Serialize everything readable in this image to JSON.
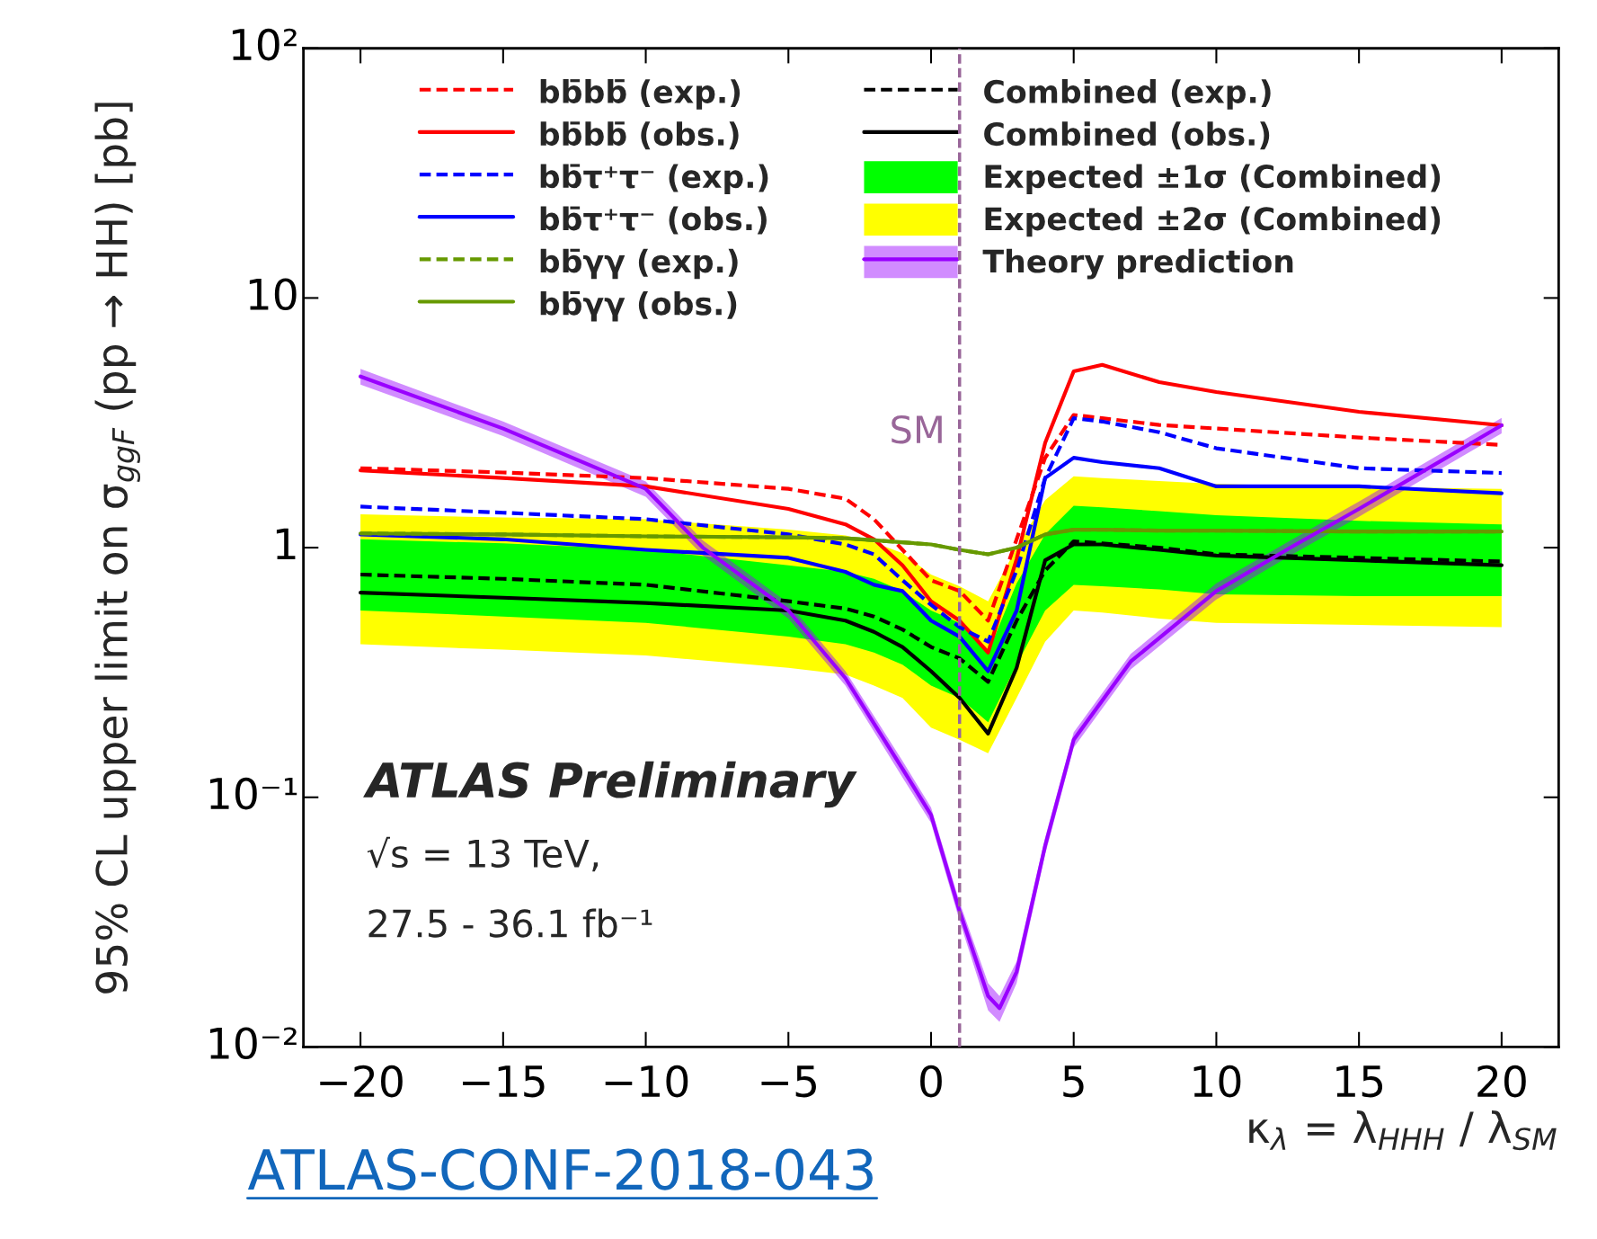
{
  "chart_data": {
    "type": "line",
    "xlabel": "κ$_{λ}$ = λ$_{HHH}$ / λ$_{SM}$",
    "ylabel": "95% CL upper limit on σ$_{ggF}$ (pp → HH) [pb]",
    "x": [
      -20,
      -15,
      -10,
      -5,
      -3,
      -2,
      -1,
      0,
      1,
      2,
      3,
      4,
      5,
      6,
      8,
      10,
      15,
      20
    ],
    "series": [
      {
        "name": "bb̄bb̄ (exp.)",
        "color": "#ff0000",
        "line_style": "dashed",
        "values": [
          2.08,
          2.0,
          1.9,
          1.72,
          1.57,
          1.3,
          0.98,
          0.74,
          0.67,
          0.51,
          1.08,
          2.29,
          3.4,
          3.3,
          3.1,
          3.0,
          2.76,
          2.58
        ]
      },
      {
        "name": "bb̄bb̄ (obs.)",
        "color": "#ff0000",
        "line_style": "solid",
        "values": [
          2.04,
          1.9,
          1.76,
          1.43,
          1.24,
          1.08,
          0.85,
          0.61,
          0.51,
          0.38,
          0.9,
          2.63,
          5.08,
          5.4,
          4.6,
          4.2,
          3.5,
          3.09
        ]
      },
      {
        "name": "bb̄τ⁺τ⁻ (exp.)",
        "color": "#0000ff",
        "line_style": "dashed",
        "values": [
          1.46,
          1.38,
          1.3,
          1.13,
          1.03,
          0.94,
          0.74,
          0.59,
          0.48,
          0.42,
          0.81,
          1.9,
          3.3,
          3.2,
          2.9,
          2.5,
          2.08,
          1.99
        ]
      },
      {
        "name": "bb̄τ⁺τ⁻ (obs.)",
        "color": "#0000ff",
        "line_style": "solid",
        "values": [
          1.13,
          1.08,
          0.98,
          0.91,
          0.8,
          0.71,
          0.67,
          0.51,
          0.44,
          0.32,
          0.56,
          1.9,
          2.29,
          2.2,
          2.08,
          1.76,
          1.76,
          1.65
        ]
      },
      {
        "name": "bb̄γγ (exp.)",
        "color": "#669900",
        "line_style": "dashed",
        "values": [
          1.14,
          1.13,
          1.11,
          1.1,
          1.09,
          1.07,
          1.05,
          1.03,
          0.98,
          0.94,
          1.0,
          1.13,
          1.18,
          1.18,
          1.17,
          1.17,
          1.16,
          1.16
        ]
      },
      {
        "name": "bb̄γγ (obs.)",
        "color": "#669900",
        "line_style": "solid",
        "values": [
          1.14,
          1.13,
          1.11,
          1.1,
          1.09,
          1.07,
          1.05,
          1.03,
          0.98,
          0.94,
          1.0,
          1.13,
          1.18,
          1.18,
          1.17,
          1.17,
          1.16,
          1.16
        ]
      },
      {
        "name": "Combined (exp.)",
        "color": "#000000",
        "line_style": "dashed",
        "values": [
          0.78,
          0.75,
          0.71,
          0.61,
          0.57,
          0.53,
          0.47,
          0.4,
          0.36,
          0.29,
          0.51,
          0.81,
          1.06,
          1.04,
          1.0,
          0.94,
          0.91,
          0.88
        ]
      },
      {
        "name": "Combined (obs.)",
        "color": "#000000",
        "line_style": "solid",
        "values": [
          0.66,
          0.63,
          0.6,
          0.56,
          0.51,
          0.46,
          0.4,
          0.32,
          0.25,
          0.18,
          0.33,
          0.89,
          1.03,
          1.03,
          0.98,
          0.93,
          0.89,
          0.85
        ]
      },
      {
        "name": "Expected ±1σ (Combined)",
        "type": "area",
        "color": "#00ff00",
        "values": [
          null,
          null,
          null,
          null,
          null,
          null,
          null,
          null,
          null,
          null,
          null,
          null,
          null,
          null,
          null,
          null,
          null,
          null
        ],
        "lower": [
          0.56,
          0.53,
          0.5,
          0.44,
          0.41,
          0.38,
          0.34,
          0.28,
          0.25,
          0.2,
          0.34,
          0.56,
          0.71,
          0.7,
          0.68,
          0.65,
          0.64,
          0.64
        ],
        "upper": [
          1.08,
          1.04,
          0.98,
          0.85,
          0.8,
          0.75,
          0.67,
          0.56,
          0.5,
          0.38,
          0.72,
          1.13,
          1.47,
          1.45,
          1.4,
          1.35,
          1.28,
          1.24
        ]
      },
      {
        "name": "Expected ±2σ (Combined)",
        "type": "area",
        "color": "#ffff00",
        "values": [
          null,
          null,
          null,
          null,
          null,
          null,
          null,
          null,
          null,
          null,
          null,
          null,
          null,
          null,
          null,
          null,
          null,
          null
        ],
        "lower": [
          0.41,
          0.39,
          0.37,
          0.33,
          0.31,
          0.28,
          0.25,
          0.19,
          0.17,
          0.15,
          0.25,
          0.42,
          0.56,
          0.55,
          0.52,
          0.5,
          0.49,
          0.48
        ],
        "upper": [
          1.36,
          1.32,
          1.3,
          1.18,
          1.12,
          1.05,
          0.95,
          0.78,
          0.7,
          0.61,
          1.0,
          1.55,
          1.93,
          1.9,
          1.85,
          1.8,
          1.75,
          1.72
        ]
      },
      {
        "name": "Theory prediction",
        "color": "#9900ff",
        "line_style": "solid",
        "x": [
          -20,
          -15,
          -10,
          -8,
          -5,
          -3,
          -1,
          0,
          1,
          2,
          2.4,
          3,
          4,
          5,
          7,
          10,
          12.6,
          15,
          20
        ],
        "values": [
          4.85,
          3.0,
          1.72,
          1.0,
          0.56,
          0.3,
          0.13,
          0.085,
          0.035,
          0.016,
          0.0143,
          0.02,
          0.064,
          0.17,
          0.35,
          0.67,
          1.0,
          1.43,
          3.09
        ],
        "lower": [
          4.5,
          2.8,
          1.6,
          0.93,
          0.52,
          0.28,
          0.12,
          0.079,
          0.032,
          0.014,
          0.0126,
          0.018,
          0.059,
          0.158,
          0.325,
          0.62,
          0.93,
          1.33,
          2.87
        ],
        "upper": [
          5.2,
          3.2,
          1.84,
          1.07,
          0.6,
          0.32,
          0.14,
          0.091,
          0.038,
          0.018,
          0.016,
          0.022,
          0.069,
          0.182,
          0.375,
          0.72,
          1.07,
          1.53,
          3.31
        ]
      }
    ],
    "ref_lines": [
      {
        "axis": "x",
        "value": 1,
        "label": "SM",
        "color": "#996699",
        "line_style": "dashed"
      }
    ],
    "annotations": [
      "ATLAS Preliminary",
      "√s = 13 TeV,",
      "27.5 - 36.1 fb⁻¹",
      "ATLAS-CONF-2018-043"
    ],
    "log": "y",
    "xlim": [
      -22,
      22
    ],
    "ylim": [
      0.01,
      100
    ],
    "xticks": [
      {
        "value": -20,
        "label": "−20"
      },
      {
        "value": -15,
        "label": "−15"
      },
      {
        "value": -10,
        "label": "−10"
      },
      {
        "value": -5,
        "label": "−5"
      },
      0,
      5,
      10,
      15,
      20
    ],
    "yticks": [
      {
        "value": 0.01,
        "label": "10⁻²"
      },
      {
        "value": 0.1,
        "label": "10⁻¹"
      },
      1,
      10,
      {
        "value": 100,
        "label": "10²"
      }
    ],
    "legend": "top",
    "grid": false
  }
}
